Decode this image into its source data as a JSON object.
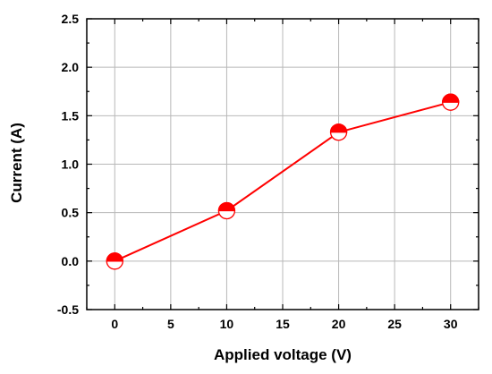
{
  "chart_data": {
    "type": "line",
    "title": "",
    "xlabel": "Applied voltage (V)",
    "ylabel": "Current (A)",
    "xlim": [
      -2.5,
      32.5
    ],
    "ylim": [
      -0.5,
      2.5
    ],
    "x_ticks": [
      0,
      5,
      10,
      15,
      20,
      25,
      30
    ],
    "y_ticks": [
      -0.5,
      0.0,
      0.5,
      1.0,
      1.5,
      2.0,
      2.5
    ],
    "x_tick_labels": [
      "0",
      "5",
      "10",
      "15",
      "20",
      "25",
      "30"
    ],
    "y_tick_labels": [
      "-0.5",
      "0.0",
      "0.5",
      "1.0",
      "1.5",
      "2.0",
      "2.5"
    ],
    "grid": true,
    "legend": "none",
    "series": [
      {
        "x": [
          0,
          10,
          20,
          30
        ],
        "y": [
          0.0,
          0.52,
          1.33,
          1.64
        ],
        "line_color": "#ff0000",
        "marker": "half-filled-circle",
        "marker_fill": "#ff0000",
        "marker_edge": "#ff0000"
      }
    ]
  }
}
